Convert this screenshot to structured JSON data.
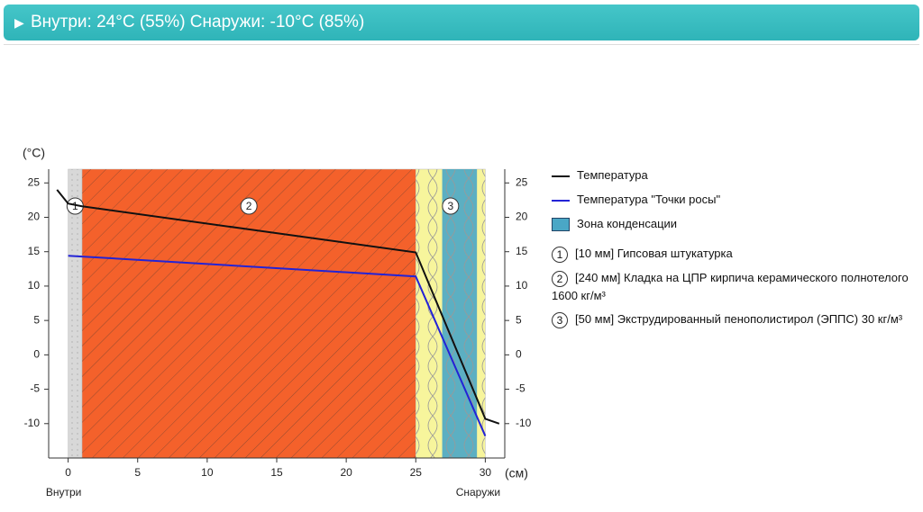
{
  "header": {
    "title": "Внутри: 24°C (55%) Снаружи: -10°C (85%)"
  },
  "chart_data": {
    "type": "line",
    "y_label": "(°C)",
    "x_label": "(см)",
    "inside_label": "Внутри",
    "outside_label": "Снаружи",
    "x": [
      -0.8,
      0,
      1,
      25,
      30,
      31
    ],
    "series": [
      {
        "name": "Температура",
        "color": "#111111",
        "values": [
          24,
          22,
          21.6,
          14.9,
          -9.3,
          -10
        ]
      },
      {
        "name": "Температура \"Точки росы\"",
        "color": "#2323d6",
        "values": [
          null,
          14.4,
          14.3,
          11.4,
          -11.8,
          null
        ]
      }
    ],
    "condensation_zone": {
      "name": "Зона конденсации",
      "from": 26.9,
      "to": 29.4,
      "color": "#4aa7c6"
    },
    "layers": [
      {
        "number": 1,
        "label": "[10 мм] Гипсовая штукатурка",
        "from": 0,
        "to": 1,
        "color": "#d8d8d8"
      },
      {
        "number": 2,
        "label": "[240 мм] Кладка на ЦПР кирпича керамического полнотелого 1600 кг/м³",
        "from": 1,
        "to": 25,
        "color": "#f4612b"
      },
      {
        "number": 3,
        "label": "[50 мм] Экструдированный пенополистирол (ЭППС) 30 кг/м³",
        "from": 25,
        "to": 30,
        "color": "#f7f59c"
      }
    ],
    "xlim": [
      -1.4,
      31.4
    ],
    "ylim": [
      -15,
      27
    ],
    "xticks": [
      0,
      5,
      10,
      15,
      20,
      25,
      30
    ],
    "yticks": [
      -10,
      -5,
      0,
      5,
      10,
      15,
      20,
      25
    ]
  }
}
